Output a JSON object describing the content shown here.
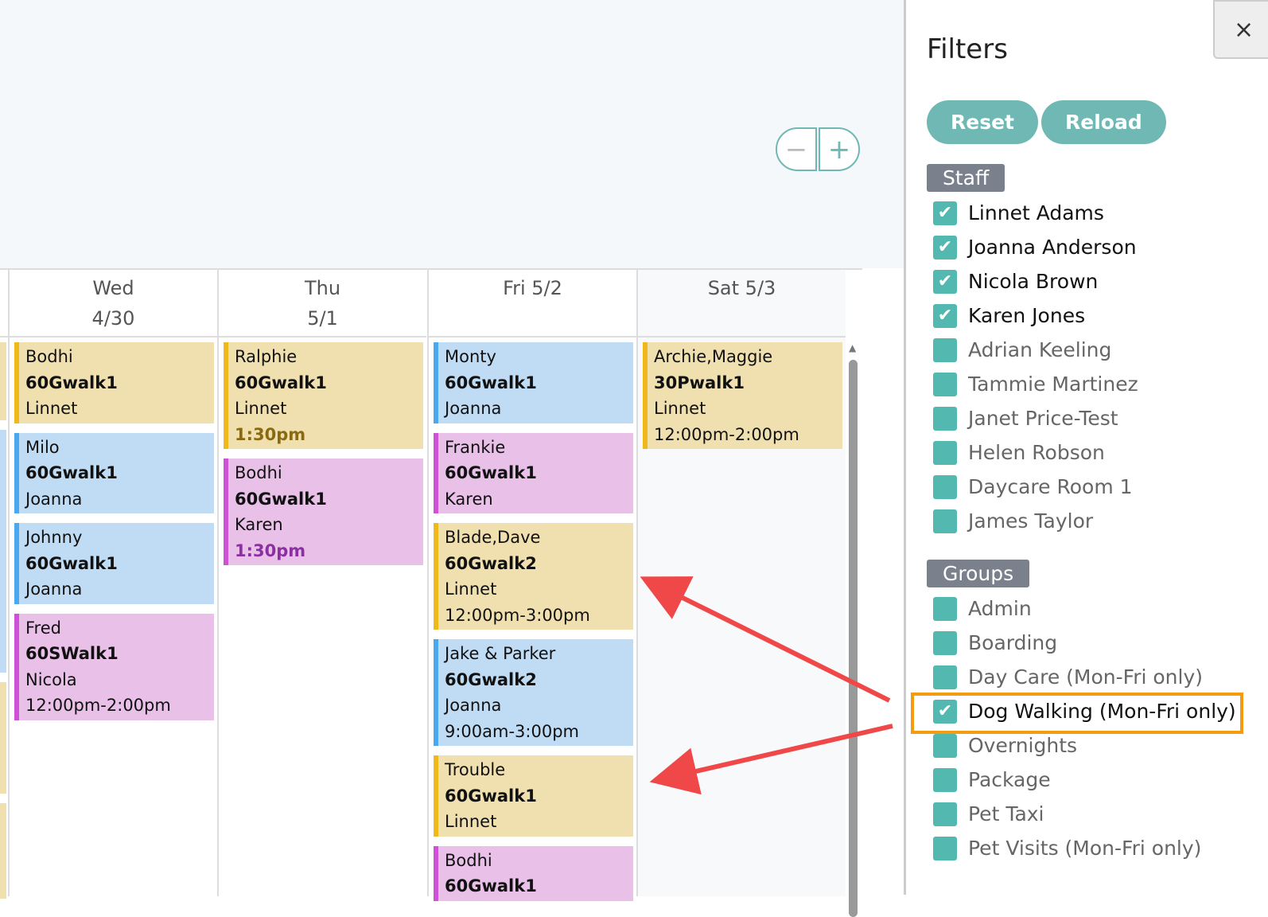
{
  "zoom": {
    "minus": "−",
    "plus": "+"
  },
  "days": [
    {
      "name": "Wed",
      "date": "4/30",
      "events": [
        {
          "color": "y",
          "pet": "Bodhi",
          "service": "60Gwalk1",
          "staff": "Linnet",
          "time": ""
        },
        {
          "color": "bl",
          "pet": "Milo",
          "service": "60Gwalk1",
          "staff": "Joanna",
          "time": ""
        },
        {
          "color": "bl",
          "pet": "Johnny",
          "service": "60Gwalk1",
          "staff": "Joanna",
          "time": ""
        },
        {
          "color": "pk",
          "pet": "Fred",
          "service": "60SWalk1",
          "staff": "Nicola",
          "time": "12:00pm-2:00pm"
        }
      ]
    },
    {
      "name": "Thu",
      "date": "5/1",
      "events": [
        {
          "color": "y",
          "pet": "Ralphie",
          "service": "60Gwalk1",
          "staff": "Linnet",
          "time": "1:30pm",
          "time_bold": true
        },
        {
          "color": "pk",
          "pet": "Bodhi",
          "service": "60Gwalk1",
          "staff": "Karen",
          "time": "1:30pm",
          "time_bold": true
        }
      ]
    },
    {
      "name": "Fri 5/2",
      "date": "",
      "events": [
        {
          "color": "bl",
          "pet": "Monty",
          "service": "60Gwalk1",
          "staff": "Joanna",
          "time": ""
        },
        {
          "color": "pk",
          "pet": "Frankie",
          "service": "60Gwalk1",
          "staff": "Karen",
          "time": ""
        },
        {
          "color": "y",
          "pet": "Blade,Dave",
          "service": "60Gwalk2",
          "staff": "Linnet",
          "time": "12:00pm-3:00pm"
        },
        {
          "color": "bl",
          "pet": "Jake & Parker",
          "service": "60Gwalk2",
          "staff": "Joanna",
          "time": "9:00am-3:00pm"
        },
        {
          "color": "y",
          "pet": "Trouble",
          "service": "60Gwalk1",
          "staff": "Linnet",
          "time": ""
        },
        {
          "color": "pk",
          "pet": "Bodhi",
          "service": "60Gwalk1",
          "staff": "",
          "time": ""
        }
      ]
    },
    {
      "name": "Sat 5/3",
      "date": "",
      "events": [
        {
          "color": "y",
          "pet": "Archie,Maggie",
          "service": "30Pwalk1",
          "staff": "Linnet",
          "time": "12:00pm-2:00pm"
        }
      ]
    }
  ],
  "filters": {
    "title": "Filters",
    "close": "×",
    "reset": "Reset",
    "reload": "Reload",
    "staff_label": "Staff",
    "staff": [
      {
        "label": "Linnet Adams",
        "checked": true
      },
      {
        "label": "Joanna Anderson",
        "checked": true
      },
      {
        "label": "Nicola Brown",
        "checked": true
      },
      {
        "label": "Karen Jones",
        "checked": true
      },
      {
        "label": "Adrian Keeling",
        "checked": false
      },
      {
        "label": "Tammie Martinez",
        "checked": false
      },
      {
        "label": "Janet Price-Test",
        "checked": false
      },
      {
        "label": "Helen Robson",
        "checked": false
      },
      {
        "label": "Daycare Room 1",
        "checked": false
      },
      {
        "label": "James Taylor",
        "checked": false
      }
    ],
    "groups_label": "Groups",
    "groups": [
      {
        "label": "Admin",
        "checked": false
      },
      {
        "label": "Boarding",
        "checked": false
      },
      {
        "label": "Day Care (Mon-Fri only)",
        "checked": false
      },
      {
        "label": "Dog Walking (Mon-Fri only)",
        "checked": true
      },
      {
        "label": "Overnights",
        "checked": false
      },
      {
        "label": "Package",
        "checked": false
      },
      {
        "label": "Pet Taxi",
        "checked": false
      },
      {
        "label": "Pet Visits (Mon-Fri only)",
        "checked": false
      }
    ]
  },
  "colors": {
    "accent": "#6fb8b4",
    "highlight": "#f39c12",
    "arrow": "#f04848"
  }
}
